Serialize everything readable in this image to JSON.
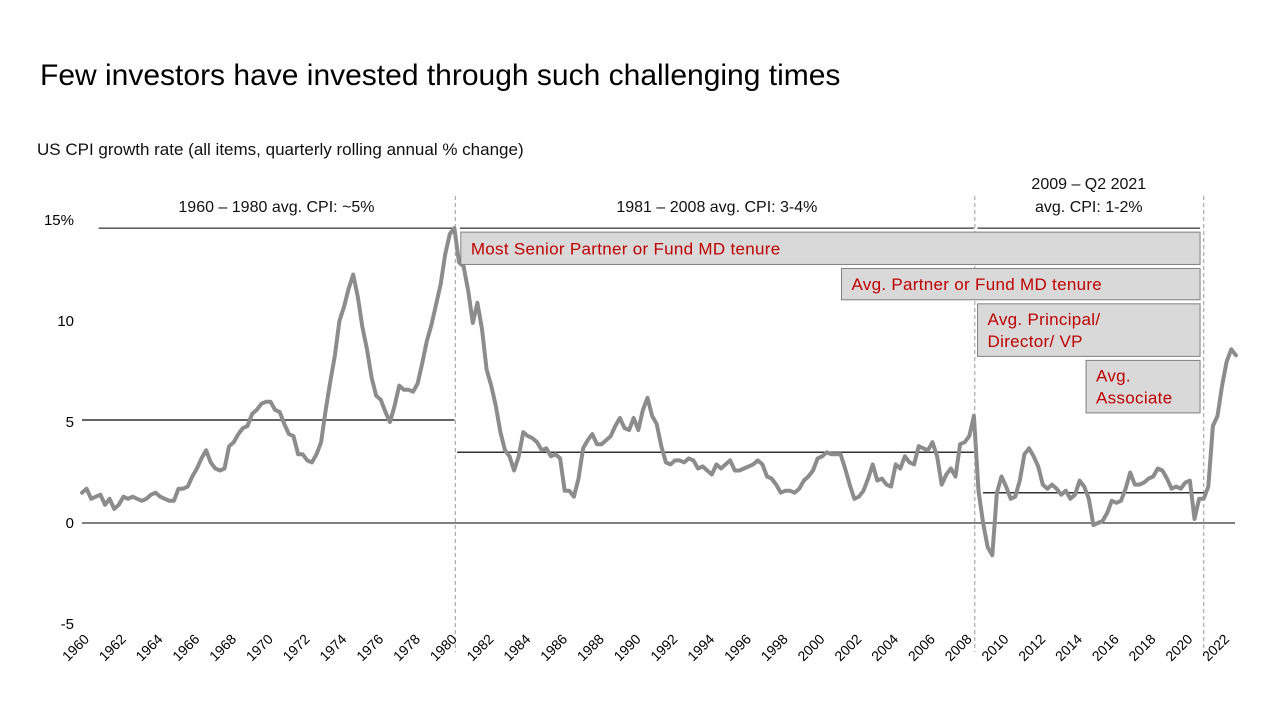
{
  "title": "Few investors have invested through such challenging times",
  "colors": {
    "series": "#8c8c8c",
    "tenure_fill": "#d9d9d9",
    "tenure_text": "#c00000",
    "average_line": "#333333"
  },
  "chart_data": {
    "type": "line",
    "subtitle": "US CPI growth rate (all items, quarterly rolling annual % change)",
    "ylim": [
      -5,
      15
    ],
    "yticks": [
      {
        "value": 15,
        "label": "15%"
      },
      {
        "value": 10,
        "label": "10"
      },
      {
        "value": 5,
        "label": "5"
      },
      {
        "value": 0,
        "label": "0"
      },
      {
        "value": -5,
        "label": "-5"
      }
    ],
    "xlim": [
      1960,
      2022.7
    ],
    "xticks": [
      "1960",
      "1962",
      "1964",
      "1966",
      "1968",
      "1970",
      "1972",
      "1974",
      "1976",
      "1978",
      "1980",
      "1982",
      "1984",
      "1986",
      "1988",
      "1990",
      "1992",
      "1994",
      "1996",
      "1998",
      "2000",
      "2002",
      "2004",
      "2006",
      "2008",
      "2010",
      "2012",
      "2014",
      "2016",
      "2018",
      "2020",
      "2022"
    ],
    "grid": false,
    "legend": "none",
    "series": [
      {
        "values": [
          [
            1960.0,
            1.5
          ],
          [
            1960.25,
            1.7
          ],
          [
            1960.5,
            1.2
          ],
          [
            1960.75,
            1.3
          ],
          [
            1961.0,
            1.4
          ],
          [
            1961.25,
            0.9
          ],
          [
            1961.5,
            1.2
          ],
          [
            1961.75,
            0.7
          ],
          [
            1962.0,
            0.9
          ],
          [
            1962.25,
            1.3
          ],
          [
            1962.5,
            1.2
          ],
          [
            1962.75,
            1.3
          ],
          [
            1963.0,
            1.2
          ],
          [
            1963.25,
            1.1
          ],
          [
            1963.5,
            1.2
          ],
          [
            1963.75,
            1.4
          ],
          [
            1964.0,
            1.5
          ],
          [
            1964.25,
            1.3
          ],
          [
            1964.5,
            1.2
          ],
          [
            1964.75,
            1.1
          ],
          [
            1965.0,
            1.1
          ],
          [
            1965.25,
            1.7
          ],
          [
            1965.5,
            1.7
          ],
          [
            1965.75,
            1.8
          ],
          [
            1966.0,
            2.3
          ],
          [
            1966.25,
            2.7
          ],
          [
            1966.5,
            3.2
          ],
          [
            1966.75,
            3.6
          ],
          [
            1967.0,
            3.0
          ],
          [
            1967.25,
            2.7
          ],
          [
            1967.5,
            2.6
          ],
          [
            1967.75,
            2.7
          ],
          [
            1968.0,
            3.8
          ],
          [
            1968.25,
            4.0
          ],
          [
            1968.5,
            4.4
          ],
          [
            1968.75,
            4.7
          ],
          [
            1969.0,
            4.8
          ],
          [
            1969.25,
            5.4
          ],
          [
            1969.5,
            5.6
          ],
          [
            1969.75,
            5.9
          ],
          [
            1970.0,
            6.0
          ],
          [
            1970.25,
            6.0
          ],
          [
            1970.5,
            5.6
          ],
          [
            1970.75,
            5.5
          ],
          [
            1971.0,
            4.9
          ],
          [
            1971.25,
            4.4
          ],
          [
            1971.5,
            4.3
          ],
          [
            1971.75,
            3.4
          ],
          [
            1972.0,
            3.4
          ],
          [
            1972.25,
            3.1
          ],
          [
            1972.5,
            3.0
          ],
          [
            1972.75,
            3.4
          ],
          [
            1973.0,
            4.0
          ],
          [
            1973.25,
            5.6
          ],
          [
            1973.5,
            7.0
          ],
          [
            1973.75,
            8.3
          ],
          [
            1974.0,
            10.0
          ],
          [
            1974.25,
            10.7
          ],
          [
            1974.5,
            11.6
          ],
          [
            1974.75,
            12.3
          ],
          [
            1975.0,
            11.2
          ],
          [
            1975.25,
            9.7
          ],
          [
            1975.5,
            8.6
          ],
          [
            1975.75,
            7.2
          ],
          [
            1976.0,
            6.3
          ],
          [
            1976.25,
            6.1
          ],
          [
            1976.5,
            5.5
          ],
          [
            1976.75,
            5.0
          ],
          [
            1977.0,
            5.8
          ],
          [
            1977.25,
            6.8
          ],
          [
            1977.5,
            6.6
          ],
          [
            1977.75,
            6.6
          ],
          [
            1978.0,
            6.5
          ],
          [
            1978.25,
            6.9
          ],
          [
            1978.5,
            7.9
          ],
          [
            1978.75,
            9.0
          ],
          [
            1979.0,
            9.8
          ],
          [
            1979.25,
            10.8
          ],
          [
            1979.5,
            11.8
          ],
          [
            1979.75,
            13.3
          ],
          [
            1980.0,
            14.3
          ],
          [
            1980.25,
            14.6
          ],
          [
            1980.5,
            12.9
          ],
          [
            1980.75,
            12.7
          ],
          [
            1981.0,
            11.5
          ],
          [
            1981.25,
            9.9
          ],
          [
            1981.5,
            10.9
          ],
          [
            1981.75,
            9.6
          ],
          [
            1982.0,
            7.6
          ],
          [
            1982.25,
            6.8
          ],
          [
            1982.5,
            5.8
          ],
          [
            1982.75,
            4.5
          ],
          [
            1983.0,
            3.6
          ],
          [
            1983.25,
            3.3
          ],
          [
            1983.5,
            2.6
          ],
          [
            1983.75,
            3.3
          ],
          [
            1984.0,
            4.5
          ],
          [
            1984.25,
            4.3
          ],
          [
            1984.5,
            4.2
          ],
          [
            1984.75,
            4.0
          ],
          [
            1985.0,
            3.6
          ],
          [
            1985.25,
            3.7
          ],
          [
            1985.5,
            3.3
          ],
          [
            1985.75,
            3.4
          ],
          [
            1986.0,
            3.2
          ],
          [
            1986.25,
            1.6
          ],
          [
            1986.5,
            1.6
          ],
          [
            1986.75,
            1.3
          ],
          [
            1987.0,
            2.2
          ],
          [
            1987.25,
            3.7
          ],
          [
            1987.5,
            4.1
          ],
          [
            1987.75,
            4.4
          ],
          [
            1988.0,
            3.9
          ],
          [
            1988.25,
            3.9
          ],
          [
            1988.5,
            4.1
          ],
          [
            1988.75,
            4.3
          ],
          [
            1989.0,
            4.8
          ],
          [
            1989.25,
            5.2
          ],
          [
            1989.5,
            4.7
          ],
          [
            1989.75,
            4.6
          ],
          [
            1990.0,
            5.2
          ],
          [
            1990.25,
            4.6
          ],
          [
            1990.5,
            5.6
          ],
          [
            1990.75,
            6.2
          ],
          [
            1991.0,
            5.3
          ],
          [
            1991.25,
            4.9
          ],
          [
            1991.5,
            3.8
          ],
          [
            1991.75,
            3.0
          ],
          [
            1992.0,
            2.9
          ],
          [
            1992.25,
            3.1
          ],
          [
            1992.5,
            3.1
          ],
          [
            1992.75,
            3.0
          ],
          [
            1993.0,
            3.2
          ],
          [
            1993.25,
            3.1
          ],
          [
            1993.5,
            2.7
          ],
          [
            1993.75,
            2.8
          ],
          [
            1994.0,
            2.6
          ],
          [
            1994.25,
            2.4
          ],
          [
            1994.5,
            2.9
          ],
          [
            1994.75,
            2.7
          ],
          [
            1995.0,
            2.9
          ],
          [
            1995.25,
            3.1
          ],
          [
            1995.5,
            2.6
          ],
          [
            1995.75,
            2.6
          ],
          [
            1996.0,
            2.7
          ],
          [
            1996.25,
            2.8
          ],
          [
            1996.5,
            2.9
          ],
          [
            1996.75,
            3.1
          ],
          [
            1997.0,
            2.9
          ],
          [
            1997.25,
            2.3
          ],
          [
            1997.5,
            2.2
          ],
          [
            1997.75,
            1.9
          ],
          [
            1998.0,
            1.5
          ],
          [
            1998.25,
            1.6
          ],
          [
            1998.5,
            1.6
          ],
          [
            1998.75,
            1.5
          ],
          [
            1999.0,
            1.7
          ],
          [
            1999.25,
            2.1
          ],
          [
            1999.5,
            2.3
          ],
          [
            1999.75,
            2.6
          ],
          [
            2000.0,
            3.2
          ],
          [
            2000.25,
            3.3
          ],
          [
            2000.5,
            3.5
          ],
          [
            2000.75,
            3.4
          ],
          [
            2001.0,
            3.4
          ],
          [
            2001.25,
            3.4
          ],
          [
            2001.5,
            2.7
          ],
          [
            2001.75,
            1.9
          ],
          [
            2002.0,
            1.2
          ],
          [
            2002.25,
            1.3
          ],
          [
            2002.5,
            1.6
          ],
          [
            2002.75,
            2.2
          ],
          [
            2003.0,
            2.9
          ],
          [
            2003.25,
            2.1
          ],
          [
            2003.5,
            2.2
          ],
          [
            2003.75,
            1.9
          ],
          [
            2004.0,
            1.8
          ],
          [
            2004.25,
            2.9
          ],
          [
            2004.5,
            2.7
          ],
          [
            2004.75,
            3.3
          ],
          [
            2005.0,
            3.0
          ],
          [
            2005.25,
            2.9
          ],
          [
            2005.5,
            3.8
          ],
          [
            2005.75,
            3.7
          ],
          [
            2006.0,
            3.6
          ],
          [
            2006.25,
            4.0
          ],
          [
            2006.5,
            3.3
          ],
          [
            2006.75,
            1.9
          ],
          [
            2007.0,
            2.4
          ],
          [
            2007.25,
            2.7
          ],
          [
            2007.5,
            2.3
          ],
          [
            2007.75,
            3.9
          ],
          [
            2008.0,
            4.0
          ],
          [
            2008.25,
            4.3
          ],
          [
            2008.5,
            5.3
          ],
          [
            2008.75,
            1.6
          ],
          [
            2009.0,
            0.0
          ],
          [
            2009.25,
            -1.2
          ],
          [
            2009.5,
            -1.6
          ],
          [
            2009.75,
            1.5
          ],
          [
            2010.0,
            2.3
          ],
          [
            2010.25,
            1.8
          ],
          [
            2010.5,
            1.2
          ],
          [
            2010.75,
            1.3
          ],
          [
            2011.0,
            2.1
          ],
          [
            2011.25,
            3.4
          ],
          [
            2011.5,
            3.7
          ],
          [
            2011.75,
            3.3
          ],
          [
            2012.0,
            2.8
          ],
          [
            2012.25,
            1.9
          ],
          [
            2012.5,
            1.7
          ],
          [
            2012.75,
            1.9
          ],
          [
            2013.0,
            1.7
          ],
          [
            2013.25,
            1.4
          ],
          [
            2013.5,
            1.6
          ],
          [
            2013.75,
            1.2
          ],
          [
            2014.0,
            1.4
          ],
          [
            2014.25,
            2.1
          ],
          [
            2014.5,
            1.8
          ],
          [
            2014.75,
            1.2
          ],
          [
            2015.0,
            -0.1
          ],
          [
            2015.25,
            0.0
          ],
          [
            2015.5,
            0.1
          ],
          [
            2015.75,
            0.5
          ],
          [
            2016.0,
            1.1
          ],
          [
            2016.25,
            1.0
          ],
          [
            2016.5,
            1.1
          ],
          [
            2016.75,
            1.7
          ],
          [
            2017.0,
            2.5
          ],
          [
            2017.25,
            1.9
          ],
          [
            2017.5,
            1.9
          ],
          [
            2017.75,
            2.0
          ],
          [
            2018.0,
            2.2
          ],
          [
            2018.25,
            2.3
          ],
          [
            2018.5,
            2.7
          ],
          [
            2018.75,
            2.6
          ],
          [
            2019.0,
            2.2
          ],
          [
            2019.25,
            1.7
          ],
          [
            2019.5,
            1.8
          ],
          [
            2019.75,
            1.7
          ],
          [
            2020.0,
            2.0
          ],
          [
            2020.25,
            2.1
          ],
          [
            2020.5,
            0.2
          ],
          [
            2020.75,
            1.2
          ],
          [
            2021.0,
            1.2
          ],
          [
            2021.25,
            1.8
          ],
          [
            2021.5,
            4.8
          ],
          [
            2021.75,
            5.3
          ],
          [
            2022.0,
            6.8
          ],
          [
            2022.25,
            8.0
          ],
          [
            2022.5,
            8.6
          ],
          [
            2022.75,
            8.3
          ]
        ]
      }
    ],
    "periods": [
      {
        "label_lines": [
          "1960 – 1980 avg. CPI: ~5%"
        ],
        "start": 1960.9,
        "end": 1980.25,
        "avg": 5.1,
        "avg_start": 1960.0,
        "avg_end": 1980.25,
        "bracket_value": 14.6
      },
      {
        "label_lines": [
          "1981 – 2008 avg. CPI: 3-4%"
        ],
        "start": 1980.55,
        "end": 2008.5,
        "avg": 3.5,
        "avg_start": 1980.4,
        "avg_end": 2008.5,
        "bracket_value": 14.6
      },
      {
        "label_lines": [
          "2009 – Q2 2021",
          "avg. CPI: 1-2%"
        ],
        "start": 2008.7,
        "end": 2020.8,
        "avg": 1.5,
        "avg_start": 2009.0,
        "avg_end": 2021.0,
        "bracket_value": 14.6
      }
    ],
    "dividers": [
      1980.3,
      2008.55,
      2021.0
    ],
    "tenure_bars": [
      {
        "lines": [
          "Most Senior Partner or Fund MD tenure"
        ],
        "start": 1980.6,
        "end": 2020.8,
        "top": 14.4,
        "bottom": 12.8
      },
      {
        "lines": [
          "Avg. Partner or Fund MD tenure"
        ],
        "start": 2001.3,
        "end": 2020.8,
        "top": 12.6,
        "bottom": 11.05
      },
      {
        "lines": [
          "Avg. Principal/",
          "Director/ VP"
        ],
        "start": 2008.7,
        "end": 2020.8,
        "top": 10.85,
        "bottom": 8.25
      },
      {
        "lines": [
          "Avg.",
          "Associate"
        ],
        "start": 2014.6,
        "end": 2020.8,
        "top": 8.05,
        "bottom": 5.45
      }
    ]
  }
}
